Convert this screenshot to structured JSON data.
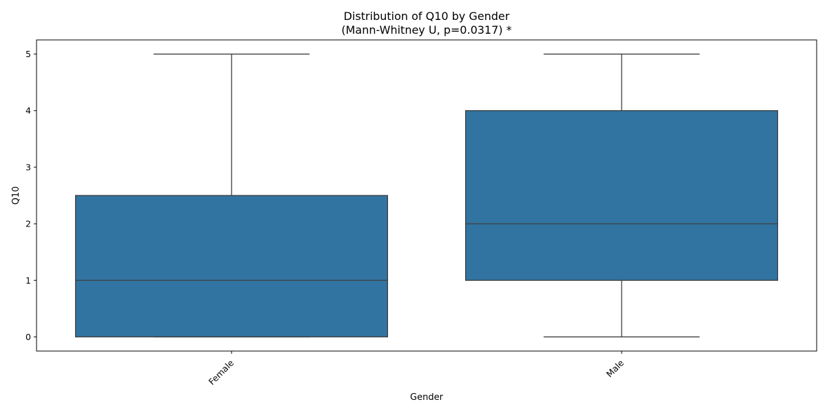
{
  "chart_data": {
    "type": "box",
    "title_lines": [
      "Distribution of Q10 by Gender",
      "(Mann-Whitney U, p=0.0317) *"
    ],
    "xlabel": "Gender",
    "ylabel": "Q10",
    "categories": [
      "Female",
      "Male"
    ],
    "boxes": [
      {
        "category": "Female",
        "whisker_low": 0,
        "q1": 0,
        "median": 1,
        "q3": 2.5,
        "whisker_high": 5
      },
      {
        "category": "Male",
        "whisker_low": 0,
        "q1": 1,
        "median": 2,
        "q3": 4,
        "whisker_high": 5
      }
    ],
    "ylim": [
      -0.25,
      5.25
    ],
    "yticks": [
      0,
      1,
      2,
      3,
      4,
      5
    ],
    "grid": false,
    "x_tick_rotation_deg": 45,
    "colors": {
      "box_fill": "#3274a1",
      "line": "#3d3d3d"
    }
  }
}
